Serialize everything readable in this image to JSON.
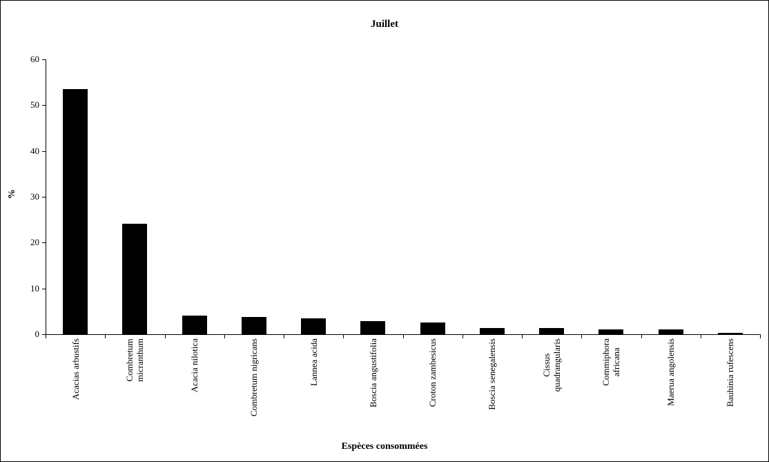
{
  "chart_data": {
    "type": "bar",
    "title": "Juillet",
    "xlabel": "Espèces consommées",
    "ylabel": "%",
    "ylim": [
      0,
      60
    ],
    "ytick_step": 10,
    "grid": false,
    "legend": false,
    "background_color": "#ffffff",
    "bar_color": "#000000",
    "categories": [
      "Acacias arbustifs",
      "Combretum micranthum",
      "Acacia nilotica",
      "Combretum nigricans",
      "Lannea acida",
      "Boscia angustifolia",
      "Croton zambesicus",
      "Boscia senegalensis",
      "Cissus quadrangularis",
      "Commiphora africana",
      "Maerua angolensis",
      "Bauhinia rufescens"
    ],
    "category_display_lines": [
      [
        "Acacias arbustifs"
      ],
      [
        "Combretum",
        "micranthum"
      ],
      [
        "Acacia nilotica"
      ],
      [
        "Combretum nigricans"
      ],
      [
        "Lannea acida"
      ],
      [
        "Boscia angustifolia"
      ],
      [
        "Croton zambesicus"
      ],
      [
        "Boscia senegalensis"
      ],
      [
        "Cissus",
        "quadrangularis"
      ],
      [
        "Commiphora",
        "africana"
      ],
      [
        "Maerua angolensis"
      ],
      [
        "Bauhinia rufescens"
      ]
    ],
    "values": [
      53.6,
      24.2,
      4.1,
      3.8,
      3.5,
      2.9,
      2.6,
      1.4,
      1.3,
      1.1,
      1.0,
      0.3
    ]
  }
}
